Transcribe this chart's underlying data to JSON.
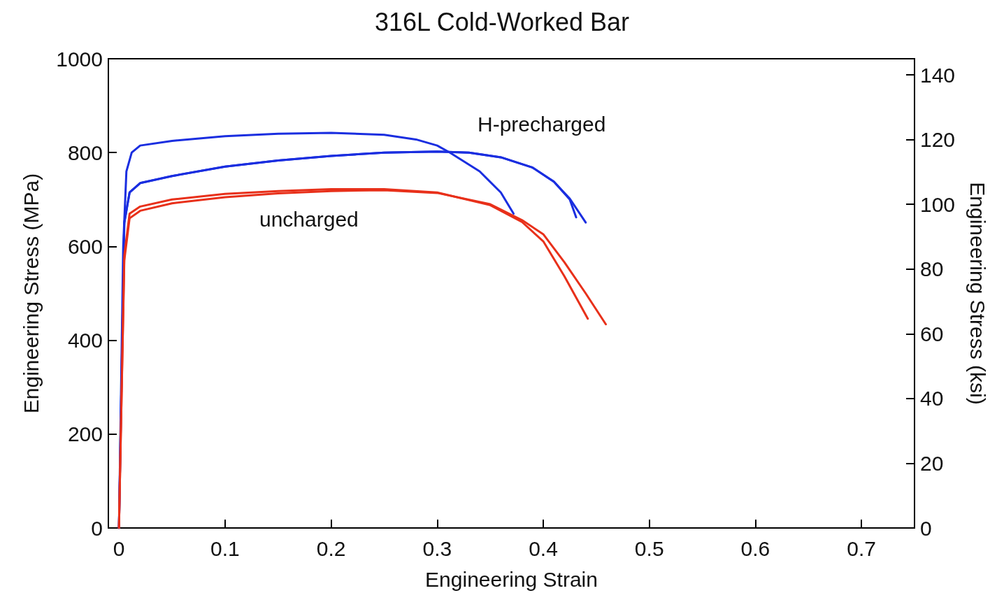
{
  "chart_data": {
    "type": "line",
    "title": "316L Cold-Worked Bar",
    "xlabel": "Engineering Strain",
    "ylabel": "Engineering Stress (MPa)",
    "y2label": "Engineering Stress (ksi)",
    "xlim": [
      -0.01,
      0.75
    ],
    "xticks": [
      0,
      0.1,
      0.2,
      0.3,
      0.4,
      0.5,
      0.6,
      0.7
    ],
    "ylim": [
      0,
      1000
    ],
    "yticks": [
      0,
      200,
      400,
      600,
      800,
      1000
    ],
    "y2lim": [
      0,
      145
    ],
    "y2ticks": [
      0,
      20,
      40,
      60,
      80,
      100,
      120,
      140
    ],
    "grid": false,
    "marker": "none",
    "line_style": "solid",
    "annotations": [
      "H-precharged",
      "uncharged"
    ],
    "series": [
      {
        "color": "#1a2ee0",
        "x": [
          0,
          0.004,
          0.007,
          0.012,
          0.02,
          0.05,
          0.1,
          0.15,
          0.2,
          0.25,
          0.28,
          0.3,
          0.312,
          0.34,
          0.36,
          0.372
        ],
        "values": [
          0,
          600,
          760,
          800,
          815,
          825,
          835,
          840,
          842,
          838,
          828,
          815,
          800,
          760,
          715,
          670
        ]
      },
      {
        "color": "#1a2ee0",
        "x": [
          0,
          0.005,
          0.01,
          0.02,
          0.05,
          0.1,
          0.15,
          0.2,
          0.25,
          0.3,
          0.33,
          0.36,
          0.39,
          0.41,
          0.425,
          0.44
        ],
        "values": [
          0,
          650,
          715,
          735,
          750,
          770,
          783,
          793,
          800,
          802,
          800,
          790,
          768,
          738,
          702,
          651
        ]
      },
      {
        "color": "#1a2ee0",
        "x": [
          0,
          0.005,
          0.01,
          0.02,
          0.05,
          0.1,
          0.15,
          0.2,
          0.25,
          0.3,
          0.33,
          0.36,
          0.39,
          0.41,
          0.425,
          0.431
        ],
        "values": [
          0,
          650,
          715,
          735,
          750,
          770,
          783,
          793,
          800,
          802,
          800,
          790,
          768,
          738,
          700,
          662
        ]
      },
      {
        "color": "#e8301a",
        "x": [
          0,
          0.005,
          0.01,
          0.02,
          0.05,
          0.1,
          0.15,
          0.2,
          0.25,
          0.3,
          0.35,
          0.38,
          0.4,
          0.42,
          0.442
        ],
        "values": [
          0,
          580,
          670,
          685,
          700,
          712,
          718,
          722,
          722,
          715,
          688,
          652,
          611,
          536,
          446
        ]
      },
      {
        "color": "#e8301a",
        "x": [
          0,
          0.005,
          0.01,
          0.02,
          0.05,
          0.1,
          0.15,
          0.2,
          0.25,
          0.3,
          0.35,
          0.38,
          0.4,
          0.42,
          0.44,
          0.459
        ],
        "values": [
          0,
          570,
          660,
          676,
          692,
          705,
          713,
          718,
          720,
          714,
          690,
          656,
          626,
          566,
          500,
          434
        ]
      }
    ]
  }
}
